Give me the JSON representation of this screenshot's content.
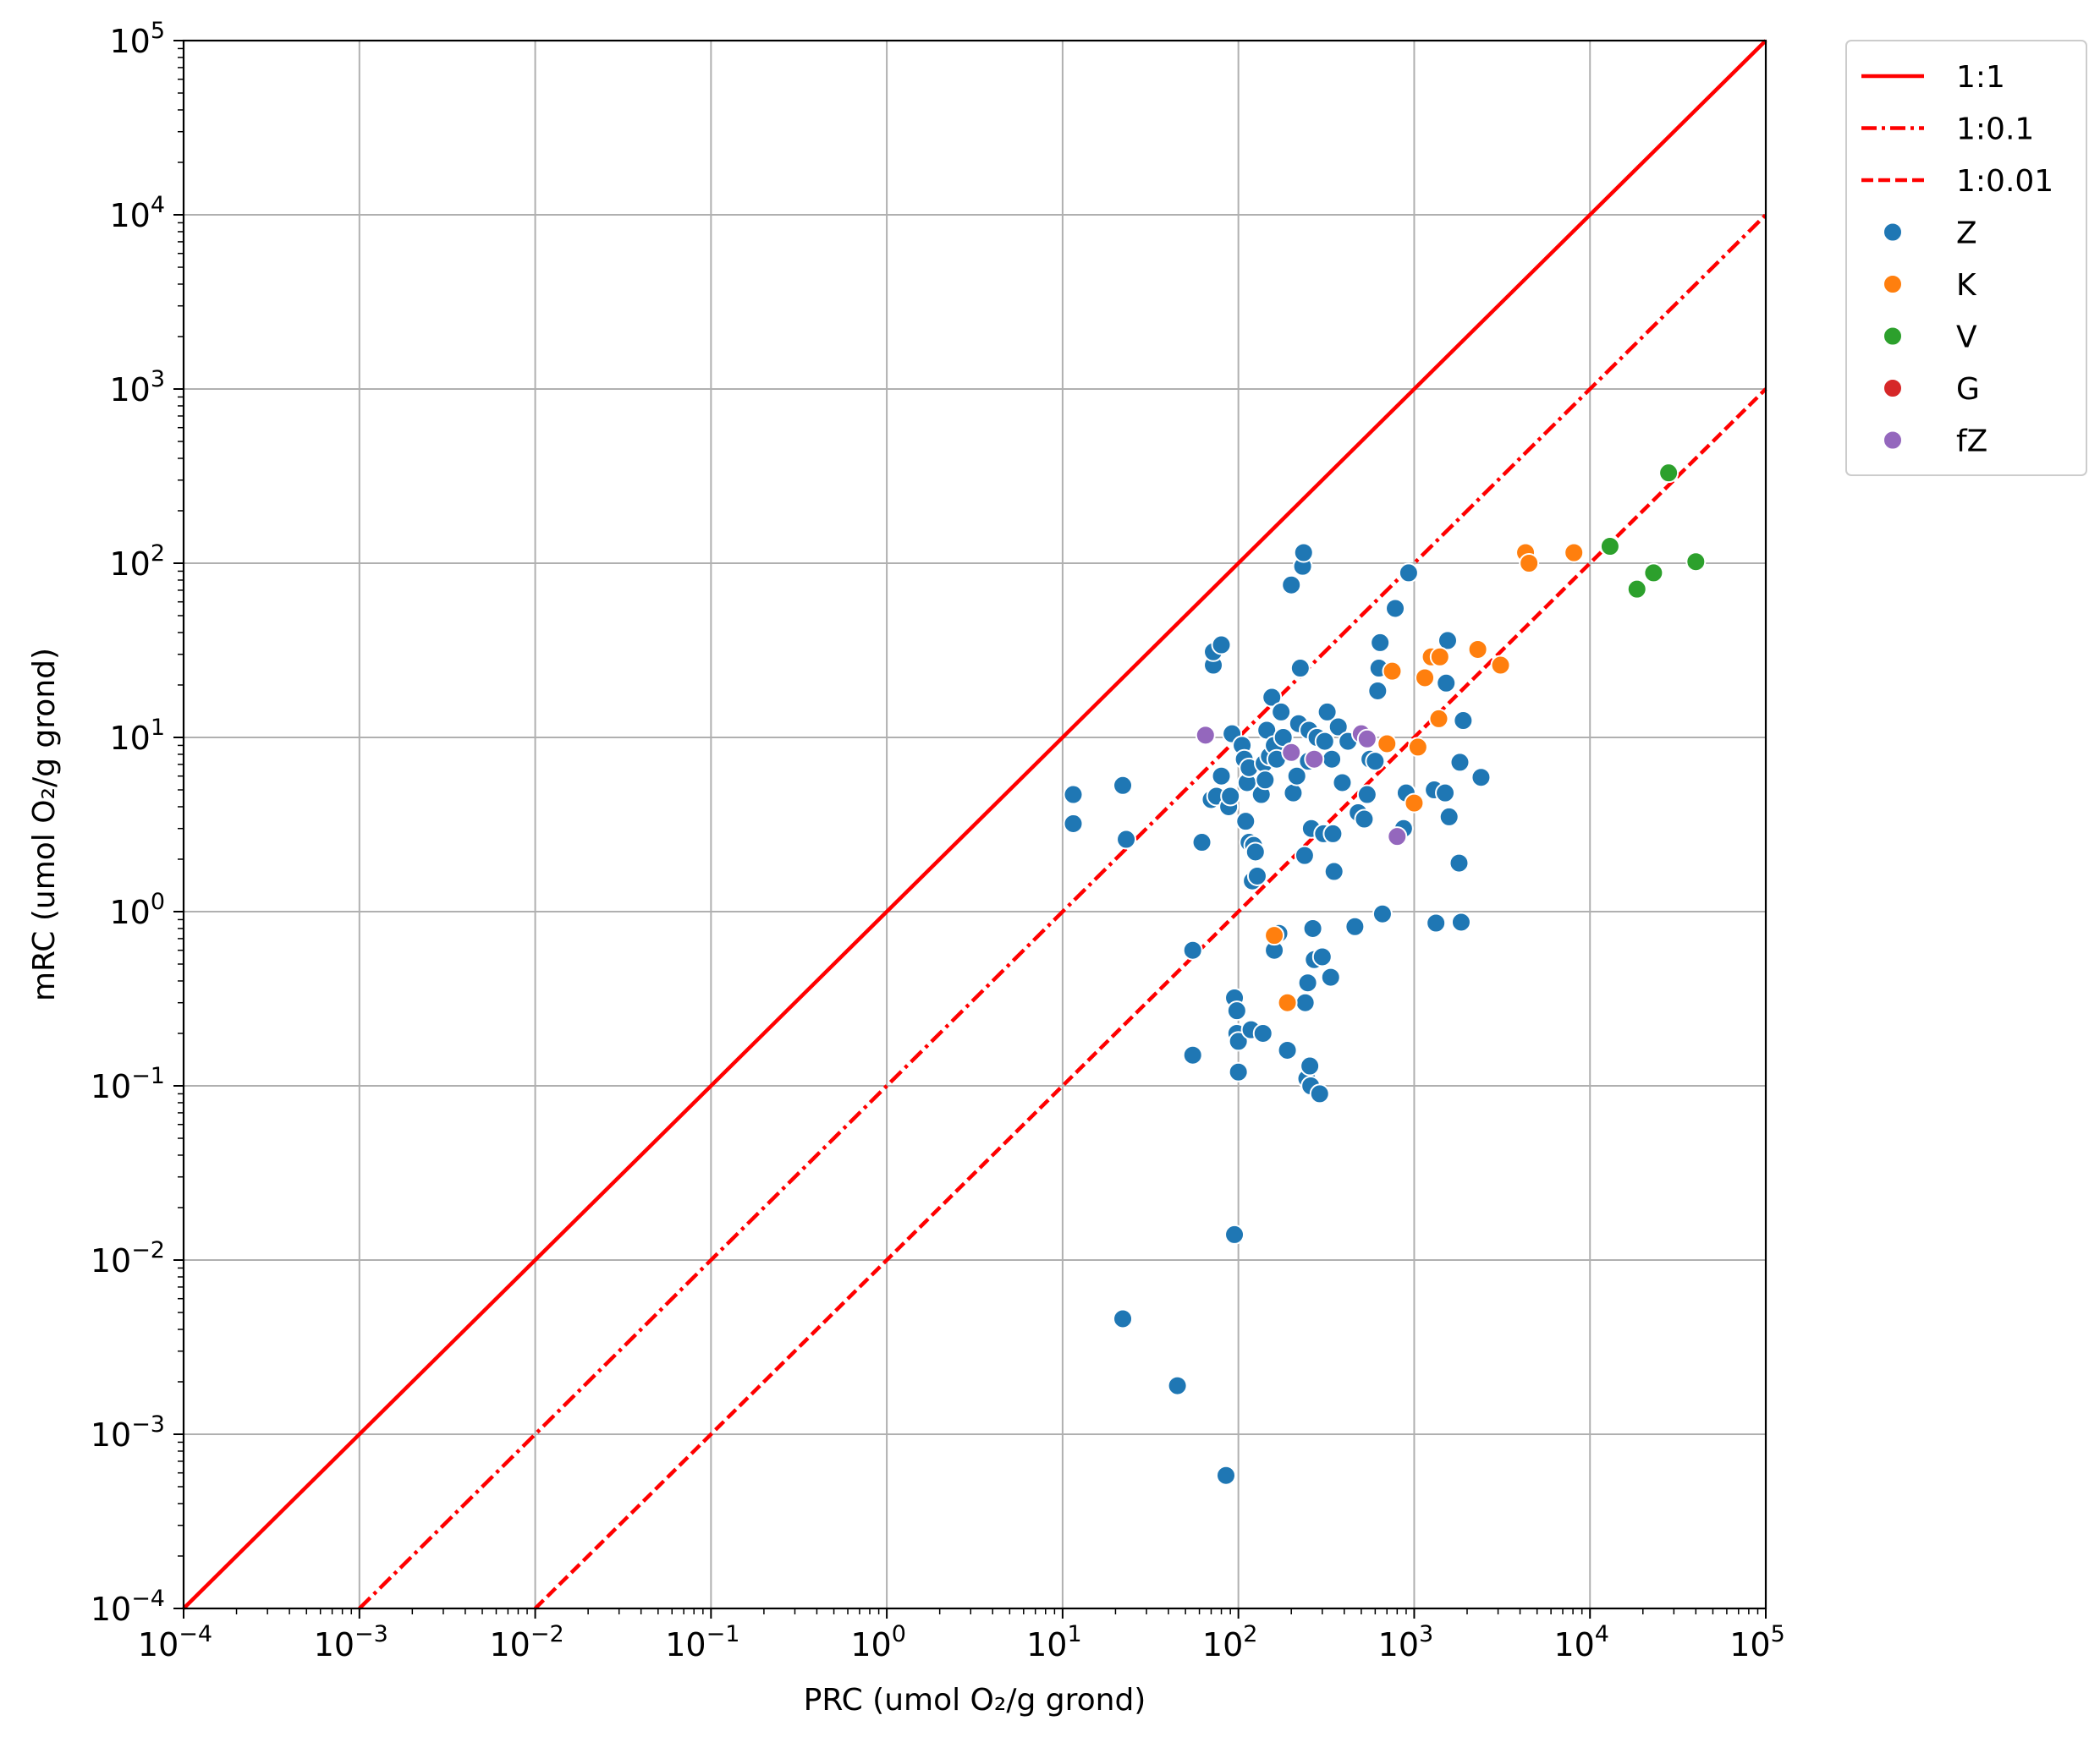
{
  "chart_data": {
    "type": "scatter",
    "xlabel": "PRC (umol O₂/g grond)",
    "ylabel": "mRC (umol O₂/g grond)",
    "xscale": "log",
    "yscale": "log",
    "xlim": [
      0.0001,
      100000
    ],
    "ylim": [
      0.0001,
      100000
    ],
    "grid": true,
    "legend_position": "outside-top-right",
    "ticks": [
      {
        "exp": -4,
        "label": "10",
        "sup": "−4"
      },
      {
        "exp": -3,
        "label": "10",
        "sup": "−3"
      },
      {
        "exp": -2,
        "label": "10",
        "sup": "−2"
      },
      {
        "exp": -1,
        "label": "10",
        "sup": "−1"
      },
      {
        "exp": 0,
        "label": "10",
        "sup": "0"
      },
      {
        "exp": 1,
        "label": "10",
        "sup": "1"
      },
      {
        "exp": 2,
        "label": "10",
        "sup": "2"
      },
      {
        "exp": 3,
        "label": "10",
        "sup": "3"
      },
      {
        "exp": 4,
        "label": "10",
        "sup": "4"
      },
      {
        "exp": 5,
        "label": "10",
        "sup": "5"
      }
    ],
    "reference_lines": [
      {
        "name": "1:1",
        "ratio": 1,
        "style": "solid",
        "color": "#ff0000"
      },
      {
        "name": "1:0.1",
        "ratio": 0.1,
        "style": "dashdot",
        "color": "#ff0000"
      },
      {
        "name": "1:0.01",
        "ratio": 0.01,
        "style": "dashed",
        "color": "#ff0000"
      }
    ],
    "series": [
      {
        "name": "Z",
        "color": "#1f77b4",
        "points": [
          [
            11.5,
            4.7
          ],
          [
            11.5,
            3.2
          ],
          [
            22,
            5.3
          ],
          [
            23,
            2.6
          ],
          [
            22,
            0.0046
          ],
          [
            45,
            0.0019
          ],
          [
            55,
            0.6
          ],
          [
            55,
            0.15
          ],
          [
            62,
            2.5
          ],
          [
            70,
            4.4
          ],
          [
            72,
            26
          ],
          [
            72,
            31
          ],
          [
            75,
            4.6
          ],
          [
            80,
            34
          ],
          [
            80,
            6.0
          ],
          [
            85,
            0.00058
          ],
          [
            88,
            4.0
          ],
          [
            90,
            4.6
          ],
          [
            92,
            10.5
          ],
          [
            95,
            0.32
          ],
          [
            95,
            0.014
          ],
          [
            98,
            0.27
          ],
          [
            98,
            0.2
          ],
          [
            100,
            0.12
          ],
          [
            100,
            0.18
          ],
          [
            105,
            9.0
          ],
          [
            108,
            7.5
          ],
          [
            110,
            3.3
          ],
          [
            112,
            5.5
          ],
          [
            115,
            6.7
          ],
          [
            115,
            2.5
          ],
          [
            118,
            0.21
          ],
          [
            120,
            1.5
          ],
          [
            122,
            2.4
          ],
          [
            125,
            2.2
          ],
          [
            128,
            1.6
          ],
          [
            135,
            4.7
          ],
          [
            138,
            0.2
          ],
          [
            140,
            7.1
          ],
          [
            142,
            5.7
          ],
          [
            145,
            11
          ],
          [
            150,
            7.8
          ],
          [
            155,
            17
          ],
          [
            160,
            9.0
          ],
          [
            160,
            0.6
          ],
          [
            165,
            7.5
          ],
          [
            170,
            0.75
          ],
          [
            175,
            14
          ],
          [
            180,
            10
          ],
          [
            190,
            0.16
          ],
          [
            200,
            75
          ],
          [
            205,
            4.8
          ],
          [
            215,
            6.0
          ],
          [
            220,
            12
          ],
          [
            225,
            25
          ],
          [
            232,
            96
          ],
          [
            235,
            115
          ],
          [
            238,
            2.1
          ],
          [
            240,
            0.3
          ],
          [
            245,
            0.11
          ],
          [
            248,
            0.39
          ],
          [
            250,
            7.3
          ],
          [
            252,
            11
          ],
          [
            255,
            0.13
          ],
          [
            258,
            0.1
          ],
          [
            260,
            3.0
          ],
          [
            265,
            0.8
          ],
          [
            270,
            0.53
          ],
          [
            280,
            10
          ],
          [
            290,
            0.09
          ],
          [
            300,
            0.55
          ],
          [
            305,
            2.8
          ],
          [
            310,
            9.5
          ],
          [
            320,
            14
          ],
          [
            335,
            0.42
          ],
          [
            340,
            7.5
          ],
          [
            345,
            2.8
          ],
          [
            350,
            1.7
          ],
          [
            370,
            11.5
          ],
          [
            390,
            5.5
          ],
          [
            420,
            9.5
          ],
          [
            460,
            0.82
          ],
          [
            480,
            3.7
          ],
          [
            520,
            3.4
          ],
          [
            540,
            4.7
          ],
          [
            560,
            7.5
          ],
          [
            600,
            7.3
          ],
          [
            620,
            18.5
          ],
          [
            630,
            25
          ],
          [
            640,
            35
          ],
          [
            660,
            0.97
          ],
          [
            780,
            55
          ],
          [
            870,
            3.0
          ],
          [
            900,
            4.8
          ],
          [
            930,
            88
          ],
          [
            1300,
            5.0
          ],
          [
            1330,
            0.86
          ],
          [
            1500,
            4.8
          ],
          [
            1520,
            20.5
          ],
          [
            1550,
            36
          ],
          [
            1580,
            3.5
          ],
          [
            1800,
            1.9
          ],
          [
            1820,
            7.2
          ],
          [
            1850,
            0.87
          ],
          [
            1900,
            12.5
          ],
          [
            2400,
            5.9
          ]
        ]
      },
      {
        "name": "K",
        "color": "#ff7f0e",
        "points": [
          [
            160,
            0.73
          ],
          [
            190,
            0.3
          ],
          [
            700,
            9.2
          ],
          [
            750,
            24
          ],
          [
            1000,
            4.2
          ],
          [
            1050,
            8.8
          ],
          [
            1150,
            22
          ],
          [
            1250,
            29
          ],
          [
            1380,
            12.8
          ],
          [
            1400,
            29
          ],
          [
            2300,
            32
          ],
          [
            3100,
            26
          ],
          [
            4300,
            115
          ],
          [
            4500,
            100
          ],
          [
            8100,
            115
          ]
        ]
      },
      {
        "name": "V",
        "color": "#2ca02c",
        "points": [
          [
            13000,
            125
          ],
          [
            18500,
            71
          ],
          [
            23000,
            88
          ],
          [
            28000,
            330
          ],
          [
            40000,
            102
          ]
        ]
      },
      {
        "name": "G",
        "color": "#d62728",
        "points": []
      },
      {
        "name": "fZ",
        "color": "#9467bd",
        "points": [
          [
            65,
            10.3
          ],
          [
            200,
            8.2
          ],
          [
            270,
            7.5
          ],
          [
            500,
            10.5
          ],
          [
            540,
            9.8
          ],
          [
            800,
            2.7
          ]
        ]
      }
    ]
  }
}
